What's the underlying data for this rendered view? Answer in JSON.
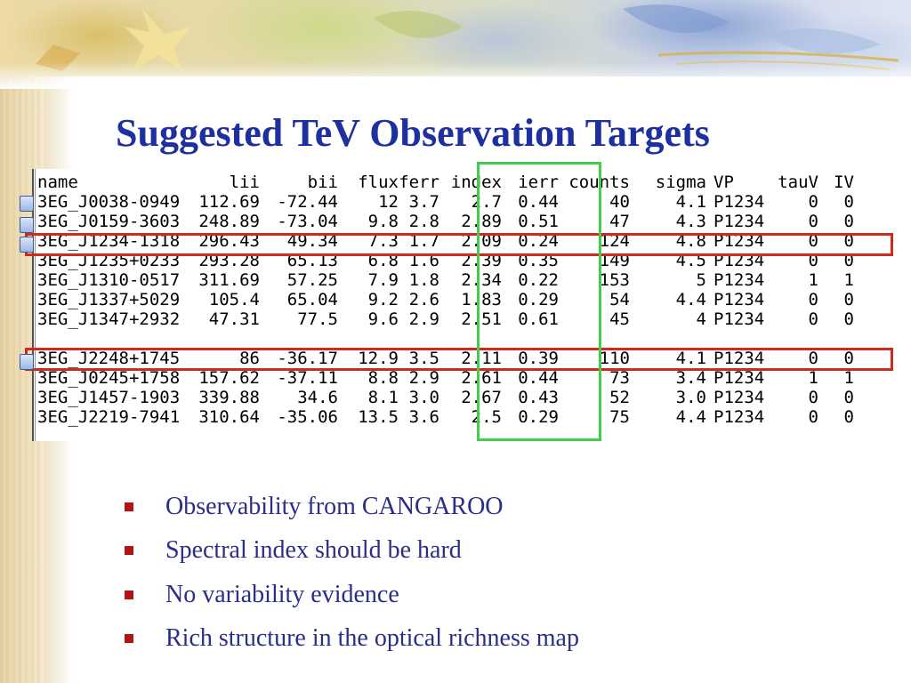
{
  "title": "Suggested TeV Observation Targets",
  "colors": {
    "title": "#1e2fa0",
    "bullet_text": "#2a2d8a",
    "bullet_mark": "#b01414",
    "highlight_rows": "#d02a1c",
    "highlight_columns": "#3fcf4a"
  },
  "table": {
    "headers": [
      "name",
      "lii",
      "bii",
      "flux",
      "ferr",
      "index",
      "ierr",
      "counts",
      "sigma",
      "VP",
      "tauV",
      "IV"
    ],
    "rows": [
      [
        "3EG_J0038-0949",
        "112.69",
        "-72.44",
        "12",
        "3.7",
        "2.7",
        "0.44",
        "40",
        "4.1",
        "P1234",
        "0",
        "0"
      ],
      [
        "3EG_J0159-3603",
        "248.89",
        "-73.04",
        "9.8",
        "2.8",
        "2.89",
        "0.51",
        "47",
        "4.3",
        "P1234",
        "0",
        "0"
      ],
      [
        "3EG_J1234-1318",
        "296.43",
        "49.34",
        "7.3",
        "1.7",
        "2.09",
        "0.24",
        "124",
        "4.8",
        "P1234",
        "0",
        "0"
      ],
      [
        "3EG_J1235+0233",
        "293.28",
        "65.13",
        "6.8",
        "1.6",
        "2.39",
        "0.35",
        "149",
        "4.5",
        "P1234",
        "0",
        "0"
      ],
      [
        "3EG_J1310-0517",
        "311.69",
        "57.25",
        "7.9",
        "1.8",
        "2.34",
        "0.22",
        "153",
        "5",
        "P1234",
        "1",
        "1"
      ],
      [
        "3EG_J1337+5029",
        "105.4",
        "65.04",
        "9.2",
        "2.6",
        "1.83",
        "0.29",
        "54",
        "4.4",
        "P1234",
        "0",
        "0"
      ],
      [
        "3EG_J1347+2932",
        "47.31",
        "77.5",
        "9.6",
        "2.9",
        "2.51",
        "0.61",
        "45",
        "4",
        "P1234",
        "0",
        "0"
      ],
      [
        "3EG_J2248+1745",
        "86",
        "-36.17",
        "12.9",
        "3.5",
        "2.11",
        "0.39",
        "110",
        "4.1",
        "P1234",
        "0",
        "0"
      ],
      [
        "3EG_J0245+1758",
        "157.62",
        "-37.11",
        "8.8",
        "2.9",
        "2.61",
        "0.44",
        "73",
        "3.4",
        "P1234",
        "1",
        "1"
      ],
      [
        "3EG_J1457-1903",
        "339.88",
        "34.6",
        "8.1",
        "3.0",
        "2.67",
        "0.43",
        "52",
        "3.0",
        "P1234",
        "0",
        "0"
      ],
      [
        "3EG_J2219-7941",
        "310.64",
        "-35.06",
        "13.5",
        "3.6",
        "2.5",
        "0.29",
        "75",
        "4.4",
        "P1234",
        "0",
        "0"
      ]
    ]
  },
  "bullets": [
    "Observability from CANGAROO",
    "Spectral index should be hard",
    "No variability evidence",
    "Rich structure in the optical richness map"
  ]
}
